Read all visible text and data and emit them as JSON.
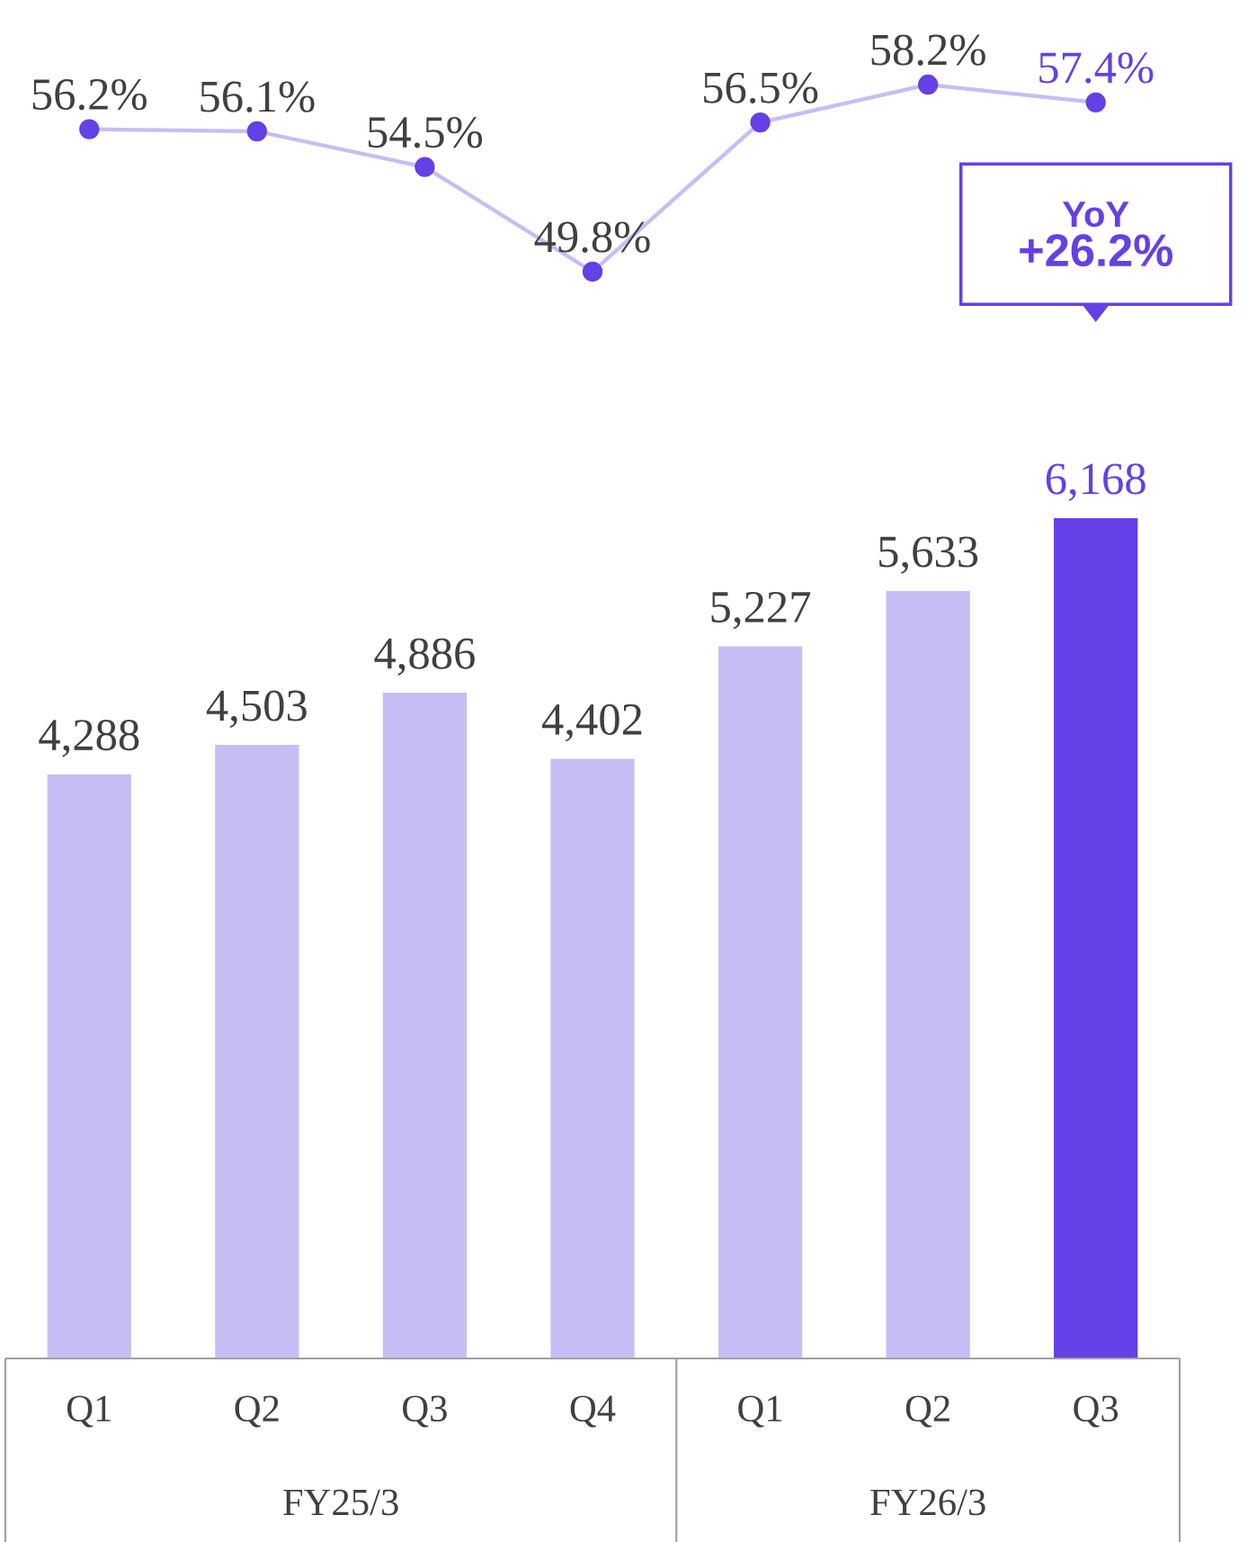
{
  "chart_data": [
    {
      "type": "line",
      "categories": [
        null,
        null,
        null,
        null,
        null,
        null,
        null
      ],
      "tick_labels": false,
      "marker": "circle",
      "series": [
        {
          "color": "#c6bdf5",
          "colors": [
            "#6440e6",
            "#6440e6",
            "#6440e6",
            "#6440e6",
            "#6440e6",
            "#6440e6",
            "#6440e6"
          ],
          "values": [
            56.2,
            56.1,
            54.5,
            49.8,
            56.5,
            58.2,
            57.4
          ],
          "value_labels": [
            "56.2%",
            "56.1%",
            "54.5%",
            "49.8%",
            "56.5%",
            "58.2%",
            "57.4%"
          ]
        }
      ]
    },
    {
      "type": "bar",
      "categories": [
        "Q1",
        "Q2",
        "Q3",
        "Q4",
        "Q1",
        "Q2",
        "Q3"
      ],
      "tick_labels": "x",
      "series": [
        {
          "colors": [
            "#c6bdf5",
            "#c6bdf5",
            "#c6bdf5",
            "#c6bdf5",
            "#c6bdf5",
            "#c6bdf5",
            "#6440e6"
          ],
          "values": [
            4288,
            4503,
            4886,
            4402,
            5227,
            5633,
            6168
          ],
          "value_labels": [
            "4,288",
            "4,503",
            "4,886",
            "4,402",
            "5,227",
            "5,633",
            "6,168"
          ]
        }
      ],
      "annotations": [
        "YoY",
        "+26.2%",
        "FY25/3",
        "FY26/3"
      ]
    }
  ]
}
